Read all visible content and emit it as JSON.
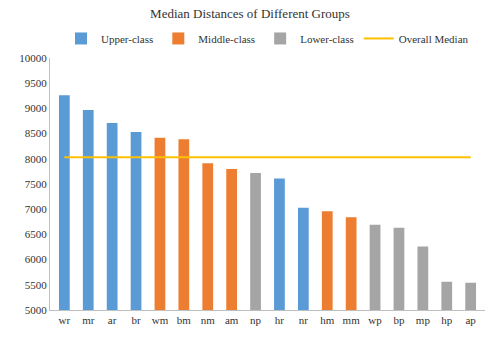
{
  "chart_data": {
    "type": "bar",
    "title": "Median Distances of Different Groups",
    "categories": [
      "wr",
      "mr",
      "ar",
      "br",
      "wm",
      "bm",
      "nm",
      "am",
      "np",
      "hr",
      "nr",
      "hm",
      "mm",
      "wp",
      "bp",
      "mp",
      "hp",
      "ap"
    ],
    "series": [
      {
        "name": "Upper-class",
        "color": "#5b9bd5",
        "values": [
          9260,
          8970,
          8710,
          8530,
          null,
          null,
          null,
          null,
          null,
          7610,
          7030,
          null,
          null,
          null,
          null,
          null,
          null,
          null
        ]
      },
      {
        "name": "Middle-class",
        "color": "#ed7d31",
        "values": [
          null,
          null,
          null,
          null,
          8420,
          8390,
          7910,
          7800,
          null,
          null,
          null,
          6960,
          6840,
          null,
          null,
          null,
          null,
          null
        ]
      },
      {
        "name": "Lower-class",
        "color": "#a5a5a5",
        "values": [
          null,
          null,
          null,
          null,
          null,
          null,
          null,
          null,
          7720,
          null,
          null,
          null,
          null,
          6690,
          6630,
          6260,
          5560,
          5540
        ]
      },
      {
        "name": "Overall Median",
        "color": "#ffc000",
        "type": "line",
        "values": [
          8030,
          8030,
          8030,
          8030,
          8030,
          8030,
          8030,
          8030,
          8030,
          8030,
          8030,
          8030,
          8030,
          8030,
          8030,
          8030,
          8030,
          8030
        ]
      }
    ],
    "ylim": [
      5000,
      10000
    ],
    "yticks": [
      5000,
      5500,
      6000,
      6500,
      7000,
      7500,
      8000,
      8500,
      9000,
      9500,
      10000
    ],
    "grid": false,
    "legend": "top"
  }
}
